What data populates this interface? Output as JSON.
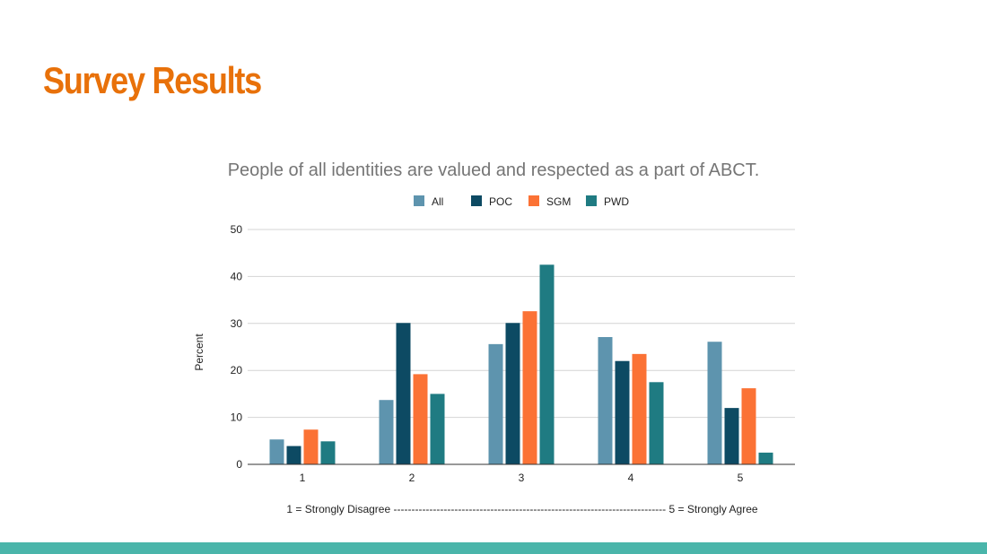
{
  "slide": {
    "title": "Survey Results",
    "title_color": "#e8710a",
    "bottom_bar_color": "#4ab5aa"
  },
  "chart_data": {
    "type": "bar",
    "title": "People of all identities are valued and respected as a part of ABCT.",
    "ylabel": "Percent",
    "xlabel": "1 = Strongly Disagree ---------------------------------------------------------------------------- 5 = Strongly Agree",
    "categories": [
      "1",
      "2",
      "3",
      "4",
      "5"
    ],
    "ylim": [
      0,
      50
    ],
    "yticks": [
      0,
      10,
      20,
      30,
      40,
      50
    ],
    "grid": true,
    "legend_position": "top",
    "series": [
      {
        "name": "All",
        "color": "#5e94ae",
        "values": [
          5.3,
          13.7,
          25.6,
          27.1,
          26.1
        ]
      },
      {
        "name": "POC",
        "color": "#0d4a63",
        "values": [
          3.9,
          30.1,
          30.1,
          22.0,
          12.0
        ]
      },
      {
        "name": "SGM",
        "color": "#fb7235",
        "values": [
          7.4,
          19.2,
          32.6,
          23.5,
          16.2
        ]
      },
      {
        "name": "PWD",
        "color": "#1f7b82",
        "values": [
          4.9,
          15.0,
          42.5,
          17.5,
          2.5
        ]
      }
    ]
  }
}
